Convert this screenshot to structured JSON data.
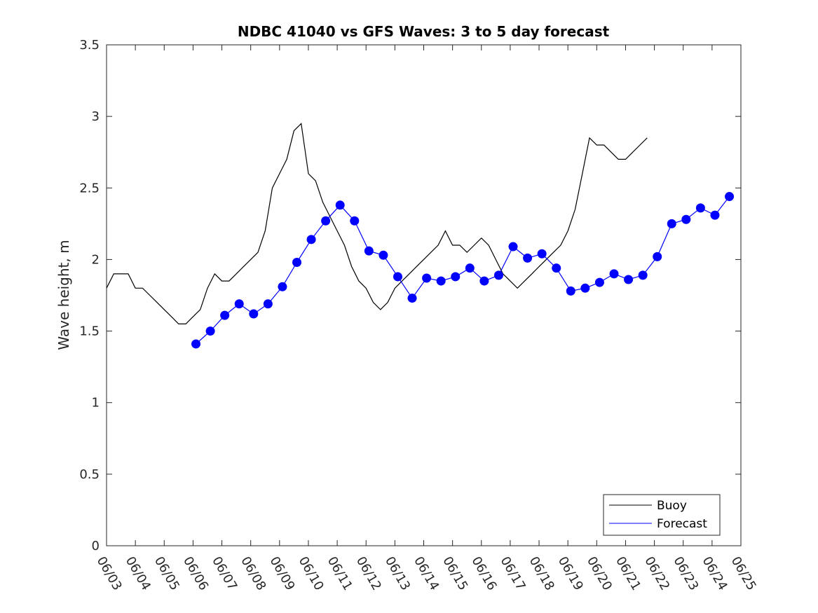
{
  "chart_data": {
    "type": "line",
    "title": "NDBC 41040 vs GFS Waves: 3 to 5 day forecast",
    "xlabel": "",
    "ylabel": "Wave height, m",
    "ylim": [
      0,
      3.5
    ],
    "xlim_days": [
      0,
      22
    ],
    "x_tick_labels": [
      "06/03",
      "06/04",
      "06/05",
      "06/06",
      "06/07",
      "06/08",
      "06/09",
      "06/10",
      "06/11",
      "06/12",
      "06/13",
      "06/14",
      "06/15",
      "06/16",
      "06/17",
      "06/18",
      "06/19",
      "06/20",
      "06/21",
      "06/22",
      "06/23",
      "06/24",
      "06/25"
    ],
    "y_ticks": [
      0,
      0.5,
      1,
      1.5,
      2,
      2.5,
      3,
      3.5
    ],
    "y_tick_labels": [
      "0",
      "0.5",
      "1",
      "1.5",
      "2",
      "2.5",
      "3",
      "3.5"
    ],
    "grid": false,
    "legend": {
      "position": "bottom-right",
      "entries": [
        {
          "label": "Buoy",
          "color": "#000000"
        },
        {
          "label": "Forecast",
          "color": "#0000ff"
        }
      ]
    },
    "colors": {
      "buoy": "#000000",
      "forecast": "#0000ff",
      "axes": "#262626"
    },
    "series": [
      {
        "name": "Buoy",
        "x": [
          0,
          0.25,
          0.5,
          0.75,
          1,
          1.25,
          1.5,
          1.75,
          2,
          2.25,
          2.5,
          2.75,
          3,
          3.25,
          3.5,
          3.75,
          4,
          4.25,
          4.5,
          4.75,
          5,
          5.25,
          5.5,
          5.75,
          6,
          6.25,
          6.5,
          6.75,
          7,
          7.25,
          7.5,
          7.75,
          8,
          8.25,
          8.5,
          8.75,
          9,
          9.25,
          9.5,
          9.75,
          10,
          10.25,
          10.5,
          10.75,
          11,
          11.25,
          11.5,
          11.75,
          12,
          12.25,
          12.5,
          12.75,
          13,
          13.25,
          13.5,
          13.75,
          14,
          14.25,
          14.5,
          14.75,
          15,
          15.25,
          15.5,
          15.75,
          16,
          16.25,
          16.5,
          16.75,
          17,
          17.25,
          17.5,
          17.75,
          18,
          18.25,
          18.5,
          18.75,
          19,
          19.25,
          19.5,
          19.75,
          20,
          20.25,
          20.5,
          20.75,
          21,
          21.25,
          21.5,
          21.75,
          22
        ],
        "values": [
          1.8,
          1.9,
          1.9,
          1.9,
          1.8,
          1.8,
          1.75,
          1.7,
          1.65,
          1.6,
          1.55,
          1.55,
          1.6,
          1.65,
          1.8,
          1.9,
          1.85,
          1.85,
          1.9,
          1.95,
          2.0,
          2.05,
          2.2,
          2.5,
          2.6,
          2.7,
          2.9,
          2.95,
          2.6,
          2.55,
          2.4,
          2.3,
          2.2,
          2.1,
          1.95,
          1.85,
          1.8,
          1.7,
          1.65,
          1.7,
          1.8,
          1.85,
          1.9,
          1.95,
          2.0,
          2.05,
          2.1,
          2.2,
          2.1,
          2.1,
          2.05,
          2.1,
          2.15,
          2.1,
          2.0,
          1.9,
          1.85,
          1.8,
          1.85,
          1.9,
          1.95,
          2.0,
          2.05,
          2.1,
          2.2,
          2.35,
          2.6,
          2.85,
          2.8,
          2.8,
          2.75,
          2.7,
          2.7,
          2.75,
          2.8,
          2.85,
          null,
          null,
          null,
          null,
          null,
          null,
          null,
          null,
          null,
          null,
          null,
          null,
          null
        ]
      },
      {
        "name": "Forecast",
        "x": [
          3.1,
          3.6,
          4.1,
          4.6,
          5.1,
          5.6,
          6.1,
          6.6,
          7.1,
          7.6,
          8.1,
          8.6,
          9.1,
          9.6,
          10.1,
          10.6,
          11.1,
          11.6,
          12.1,
          12.6,
          13.1,
          13.6,
          14.1,
          14.6,
          15.1,
          15.6,
          16.1,
          16.6,
          17.1,
          17.6,
          18.1,
          18.6,
          19.1,
          19.6,
          20.1,
          20.6,
          21.1,
          21.6
        ],
        "values": [
          1.41,
          1.5,
          1.61,
          1.69,
          1.62,
          1.69,
          1.81,
          1.98,
          2.14,
          2.27,
          2.38,
          2.27,
          2.06,
          2.03,
          1.88,
          1.73,
          1.87,
          1.85,
          1.88,
          1.94,
          1.85,
          1.89,
          2.09,
          2.01,
          2.04,
          1.94,
          1.78,
          1.8,
          1.84,
          1.9,
          1.86,
          1.89,
          2.02,
          2.25,
          2.28,
          2.36,
          2.31,
          2.44
        ]
      }
    ]
  }
}
